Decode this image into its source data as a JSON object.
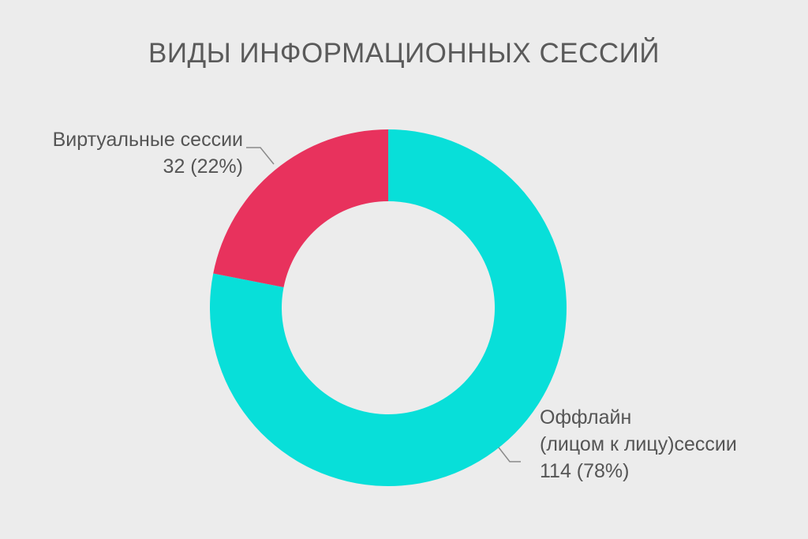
{
  "chart_data": {
    "type": "pie",
    "variant": "donut",
    "title": "ВИДЫ ИНФОРМАЦИОННЫХ СЕССИЙ",
    "slices": [
      {
        "name": "Оффлайн (лицом к лицу)сессии",
        "label_lines": [
          "Оффлайн",
          "(лицом к лицу)сессии"
        ],
        "value": 114,
        "percent": "78%",
        "value_label": "114 (78%)",
        "color": "#08dfd9"
      },
      {
        "name": "Виртуальные сессии",
        "label_lines": [
          "Виртуальные сессии"
        ],
        "value": 32,
        "percent": "22%",
        "value_label": "32 (22%)",
        "color": "#e8325d"
      }
    ],
    "legend": "none",
    "data_labels": "outside with leader lines"
  },
  "colors": {
    "background": "#ececec",
    "text": "#555555",
    "leader_line": "#8a8a8a"
  }
}
